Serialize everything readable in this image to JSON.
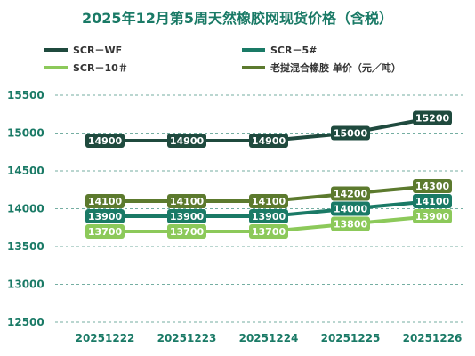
{
  "chart_data": {
    "type": "line",
    "title": "2025年12月第5周天然橡胶网现货价格（含税）",
    "categories": [
      "20251222",
      "20251223",
      "20251224",
      "20251225",
      "20251226"
    ],
    "ylim": [
      12500,
      15500
    ],
    "yticks": [
      12500,
      13000,
      13500,
      14000,
      14500,
      15000,
      15500
    ],
    "grid": true,
    "legend_position": "top",
    "series": [
      {
        "name": "SCR－WF",
        "color": "#1f4a3e",
        "values": [
          14900,
          14900,
          14900,
          15000,
          15200
        ]
      },
      {
        "name": "SCR－5#",
        "color": "#1a7a66",
        "values": [
          13900,
          13900,
          13900,
          14000,
          14100
        ]
      },
      {
        "name": "SCR－10＃",
        "color": "#8cc95a",
        "values": [
          13700,
          13700,
          13700,
          13800,
          13900
        ]
      },
      {
        "name": "老挝混合橡胶 单价（元／吨）",
        "color": "#5c7a2e",
        "values": [
          14100,
          14100,
          14100,
          14200,
          14300
        ]
      }
    ]
  }
}
